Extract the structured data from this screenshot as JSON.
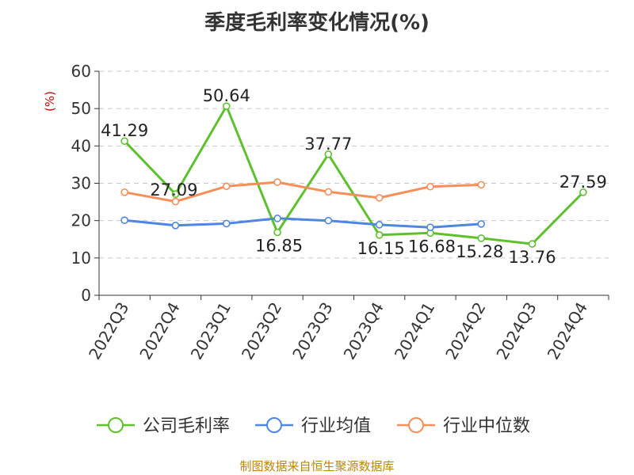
{
  "chart_data": {
    "type": "line",
    "title": "季度毛利率变化情况(%)",
    "ylabel": "(%)",
    "ylim": [
      0,
      60
    ],
    "yticks": [
      0,
      10,
      20,
      30,
      40,
      50,
      60
    ],
    "grid": true,
    "legend_position": "bottom",
    "categories": [
      "2022Q3",
      "2022Q4",
      "2023Q1",
      "2023Q2",
      "2023Q3",
      "2023Q4",
      "2024Q1",
      "2024Q2",
      "2024Q3",
      "2024Q4"
    ],
    "series": [
      {
        "name": "公司毛利率",
        "color": "#5ec02f",
        "values": [
          41.29,
          27.09,
          50.64,
          16.85,
          37.77,
          16.15,
          16.68,
          15.28,
          13.76,
          27.59
        ],
        "labels": [
          "41.29",
          "27.09",
          "50.64",
          "16.85",
          "37.77",
          "16.15",
          "16.68",
          "15.28",
          "13.76",
          "27.59"
        ]
      },
      {
        "name": "行业均值",
        "color": "#4f86e0",
        "values": [
          20.1,
          18.7,
          19.2,
          20.6,
          20.0,
          18.9,
          18.2,
          19.1,
          null,
          null
        ]
      },
      {
        "name": "行业中位数",
        "color": "#f58f5a",
        "values": [
          27.6,
          25.1,
          29.2,
          30.3,
          27.7,
          26.1,
          29.1,
          29.6,
          null,
          null
        ]
      }
    ]
  },
  "source": "制图数据来自恒生聚源数据库"
}
